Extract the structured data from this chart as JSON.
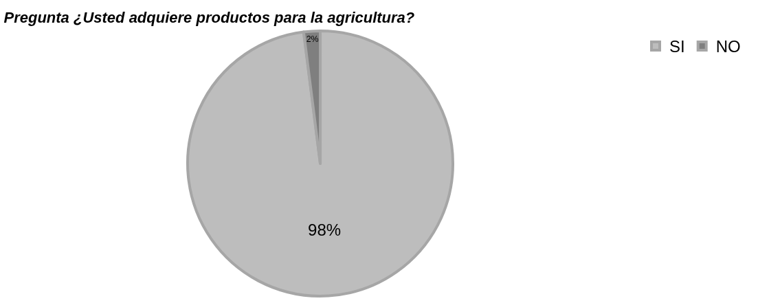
{
  "chart_data": {
    "type": "pie",
    "title": "Pregunta ¿Usted adquiere productos para la agricultura?",
    "categories": [
      "SI",
      "NO"
    ],
    "values": [
      98,
      2
    ],
    "colors": [
      "#bdbdbd",
      "#7f7f7f"
    ],
    "value_labels": [
      "98%",
      "2%"
    ],
    "legend": "top right"
  }
}
